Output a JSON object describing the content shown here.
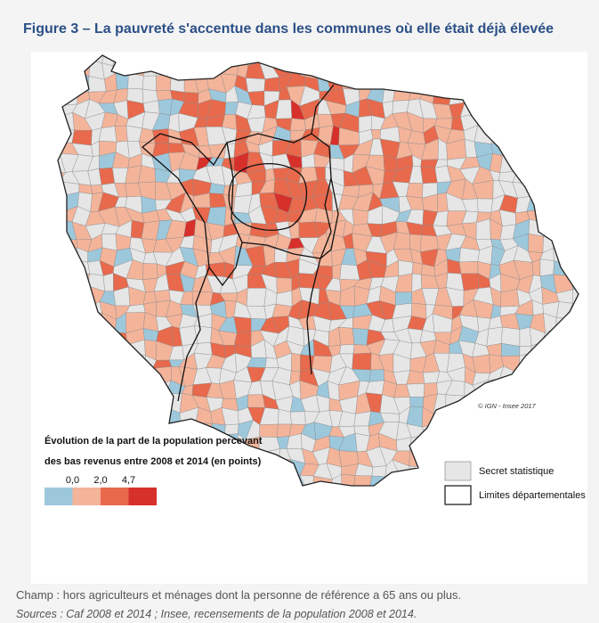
{
  "header": {
    "title": "Figure 3 – La pauvreté s'accentue dans les communes où elle était déjà élevée"
  },
  "map": {
    "credit": "© IGN - Insee 2017",
    "legend": {
      "title": [
        "Évolution de la part de la population percevant",
        "des bas revenus entre 2008 et 2014 (en points)"
      ],
      "breaks": [
        "0,0",
        "2,0",
        "4,7"
      ],
      "colors": [
        "#9dc8dc",
        "#f4b49a",
        "#e8694c",
        "#d7302a"
      ],
      "items": [
        {
          "label": "Secret statistique",
          "color": "#e6e6e6"
        },
        {
          "label": "Limites départementales"
        }
      ]
    }
  },
  "footer": {
    "scope": "Champ : hors agriculteurs et ménages dont la personne de référence a 65 ans ou plus.",
    "sources": "Sources : Caf 2008 et 2014 ; Insee, recensements de la population 2008 et 2014."
  }
}
